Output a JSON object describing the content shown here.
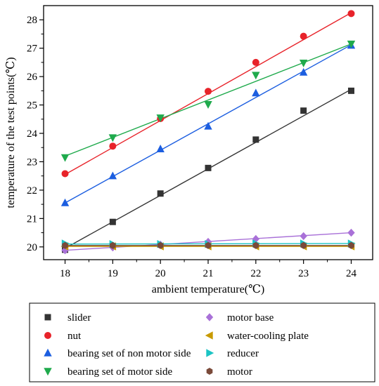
{
  "chart_data": {
    "type": "scatter",
    "xlabel": "ambient temperature(℃)",
    "ylabel": "temperature of the test points(℃)",
    "xlim": [
      17.55,
      24.45
    ],
    "ylim": [
      19.55,
      28.5
    ],
    "xticks": [
      18,
      19,
      20,
      21,
      22,
      23,
      24
    ],
    "yticks": [
      20,
      21,
      22,
      23,
      24,
      25,
      26,
      27,
      28
    ],
    "grid": false,
    "legend_position": "below",
    "x": [
      18,
      19,
      20,
      21,
      22,
      23,
      24
    ],
    "series": [
      {
        "name": "slider",
        "marker": "square",
        "color": "#333333",
        "values": [
          19.9,
          20.88,
          21.88,
          22.78,
          23.78,
          24.8,
          25.5
        ],
        "fit": [
          19.95,
          25.55
        ]
      },
      {
        "name": "nut",
        "marker": "circle",
        "color": "#e8232a",
        "values": [
          22.58,
          23.55,
          24.52,
          25.48,
          26.5,
          27.42,
          28.22
        ],
        "fit": [
          22.55,
          28.25
        ]
      },
      {
        "name": "bearing set of non motor side",
        "marker": "triangle-up",
        "color": "#1c5ee0",
        "values": [
          21.55,
          22.5,
          23.45,
          24.25,
          25.42,
          26.15,
          27.1
        ],
        "fit": [
          21.55,
          27.12
        ]
      },
      {
        "name": "bearing set of motor side",
        "marker": "triangle-down",
        "color": "#1faa4c",
        "values": [
          23.15,
          23.85,
          24.55,
          25.02,
          26.05,
          26.48,
          27.15
        ],
        "fit": [
          23.2,
          27.15
        ]
      },
      {
        "name": "motor base",
        "marker": "diamond",
        "color": "#a971d8",
        "values": [
          19.88,
          19.98,
          20.08,
          20.18,
          20.28,
          20.38,
          20.5
        ],
        "fit": [
          19.88,
          20.5
        ]
      },
      {
        "name": "water-cooling plate",
        "marker": "triangle-left",
        "color": "#c89a00",
        "values": [
          20.02,
          20.02,
          20.02,
          20.02,
          20.02,
          20.02,
          20.02
        ],
        "fit": [
          20.02,
          20.02
        ]
      },
      {
        "name": "reducer",
        "marker": "triangle-right",
        "color": "#1bc4c4",
        "values": [
          20.12,
          20.1,
          20.1,
          20.1,
          20.12,
          20.12,
          20.12
        ],
        "fit": [
          20.1,
          20.12
        ]
      },
      {
        "name": "motor",
        "marker": "hexagon",
        "color": "#7a4a3a",
        "values": [
          20.05,
          20.05,
          20.05,
          20.05,
          20.05,
          20.05,
          20.05
        ],
        "fit": [
          20.05,
          20.05
        ]
      }
    ]
  }
}
